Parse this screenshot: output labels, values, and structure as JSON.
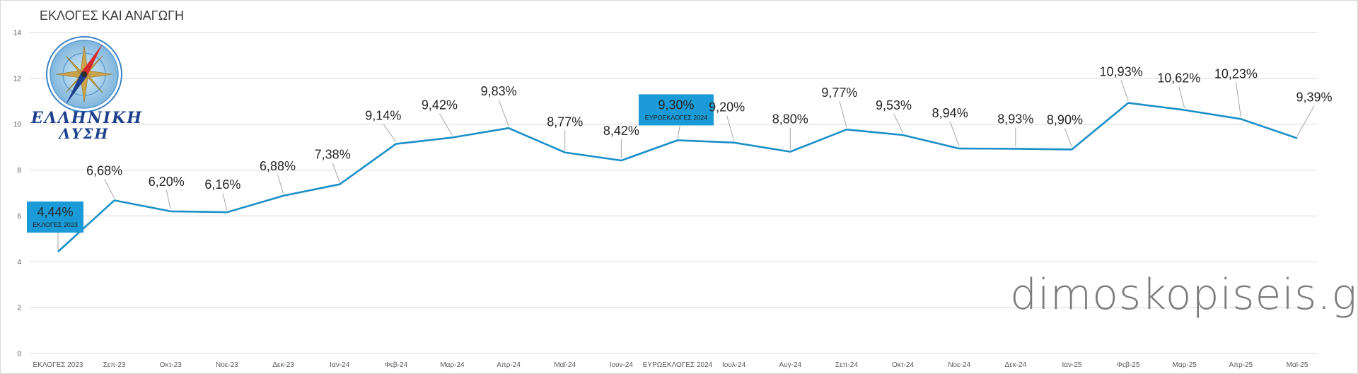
{
  "title": "ΕΚΛΟΓΕΣ ΚΑΙ ΑΝΑΓΩΓΗ",
  "watermark": "dimoskopiseis.gr",
  "logo": {
    "line1": "ΕΛΛΗΝΙΚΗ",
    "line2": "ΛΥΣΗ"
  },
  "colors": {
    "line": "#1a8fc7",
    "callout": "#1a9bd7",
    "grid": "#d9d9d9",
    "leader": "#a6a6a6"
  },
  "chart_data": {
    "type": "line",
    "title": "ΕΚΛΟΓΕΣ ΚΑΙ ΑΝΑΓΩΓΗ",
    "xlabel": "",
    "ylabel": "",
    "ylim": [
      0,
      14
    ],
    "yticks": [
      0,
      2,
      4,
      6,
      8,
      10,
      12,
      14
    ],
    "grid": true,
    "categories": [
      "ΕΚΛΟΓΕΣ 2023",
      "Σεπ-23",
      "Οκτ-23",
      "Νοε-23",
      "Δεκ-23",
      "Ιαν-24",
      "Φεβ-24",
      "Μαρ-24",
      "Απρ-24",
      "Μαϊ-24",
      "Ιουν-24",
      "ΕΥΡΩΕΚΛΟΓΕΣ 2024",
      "Ιουλ-24",
      "Αυγ-24",
      "Σεπ-24",
      "Οκτ-24",
      "Νοε-24",
      "Δεκ-24",
      "Ιαν-25",
      "Φεβ-25",
      "Μαρ-25",
      "Απρ-25",
      "Μαϊ-25"
    ],
    "series": [
      {
        "values": [
          4.44,
          6.68,
          6.2,
          6.16,
          6.88,
          7.38,
          9.14,
          9.42,
          9.83,
          8.77,
          8.42,
          9.3,
          9.2,
          8.8,
          9.77,
          9.53,
          8.94,
          8.93,
          8.9,
          10.93,
          10.62,
          10.23,
          9.39
        ]
      }
    ],
    "data_labels": [
      "4,44%",
      "6,68%",
      "6,20%",
      "6,16%",
      "6,88%",
      "7,38%",
      "9,14%",
      "9,42%",
      "9,83%",
      "8,77%",
      "8,42%",
      "9,30%",
      "9,20%",
      "8,80%",
      "9,77%",
      "9,53%",
      "8,94%",
      "8,93%",
      "8,90%",
      "10,93%",
      "10,62%",
      "10,23%",
      "9,39%"
    ],
    "callouts": [
      {
        "index": 0,
        "caption": "ΕΚΛΟΓΕΣ 2023"
      },
      {
        "index": 11,
        "caption": "ΕΥΡΩΕΚΛΟΓΕΣ 2024"
      }
    ]
  }
}
